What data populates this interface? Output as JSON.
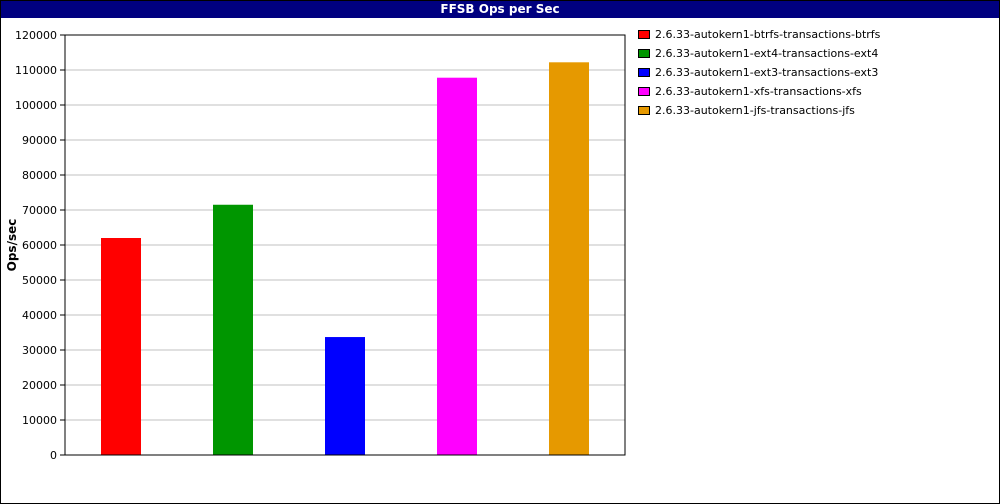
{
  "chart_data": {
    "type": "bar",
    "title": "FFSB Ops per Sec",
    "xlabel": "",
    "ylabel": "Ops/sec",
    "ylim": [
      0,
      120000
    ],
    "yticks": [
      0,
      10000,
      20000,
      30000,
      40000,
      50000,
      60000,
      70000,
      80000,
      90000,
      100000,
      110000,
      120000
    ],
    "grid": true,
    "legend_position": "right",
    "series": [
      {
        "name": "2.6.33-autokern1-btrfs-transactions-btrfs",
        "value": 62000,
        "color": "#ff0000"
      },
      {
        "name": "2.6.33-autokern1-ext4-transactions-ext4",
        "value": 71500,
        "color": "#009600"
      },
      {
        "name": "2.6.33-autokern1-ext3-transactions-ext3",
        "value": 33700,
        "color": "#0000ff"
      },
      {
        "name": "2.6.33-autokern1-xfs-transactions-xfs",
        "value": 107800,
        "color": "#ff00ff"
      },
      {
        "name": "2.6.33-autokern1-jfs-transactions-jfs",
        "value": 112200,
        "color": "#e69900"
      }
    ]
  }
}
